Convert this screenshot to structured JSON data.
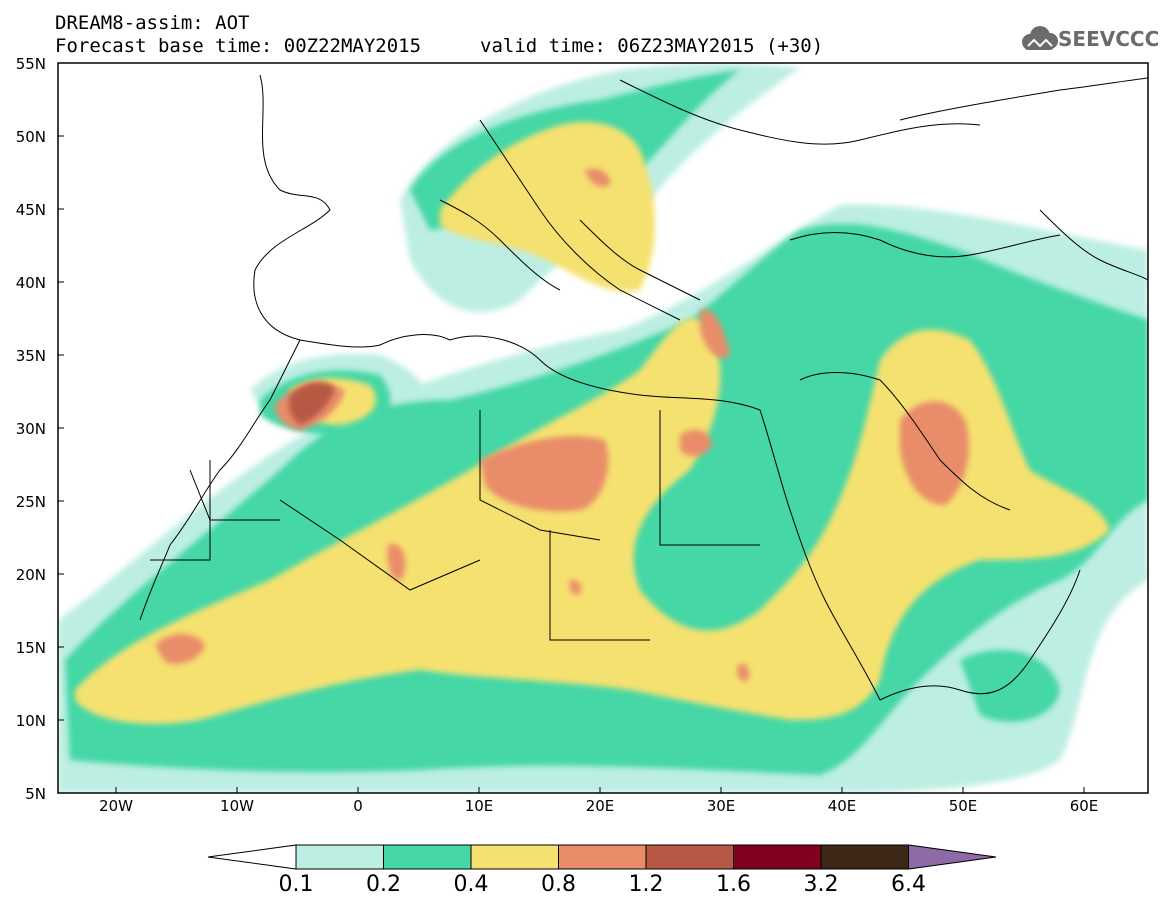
{
  "header": {
    "model_line": "DREAM8-assim: AOT",
    "base_time_line": "Forecast base time: 00Z22MAY2015",
    "valid_time_line": "valid time: 06Z23MAY2015 (+30)"
  },
  "logo": {
    "text": "SEEVCCC",
    "icon": "cloud-icon"
  },
  "map": {
    "lat_labels": [
      "55N",
      "50N",
      "45N",
      "40N",
      "35N",
      "30N",
      "25N",
      "20N",
      "15N",
      "10N",
      "5N"
    ],
    "lon_labels": [
      "20W",
      "10W",
      "0",
      "10E",
      "20E",
      "30E",
      "40E",
      "50E",
      "60E"
    ]
  },
  "colorbar": {
    "levels": [
      "0.1",
      "0.2",
      "0.4",
      "0.8",
      "1.2",
      "1.6",
      "3.2",
      "6.4"
    ],
    "colors": [
      "#ffffff",
      "#bdeee3",
      "#45d7a6",
      "#f5e16f",
      "#e98c69",
      "#b75844",
      "#800020",
      "#3d2817",
      "#8e6aa6"
    ]
  }
}
